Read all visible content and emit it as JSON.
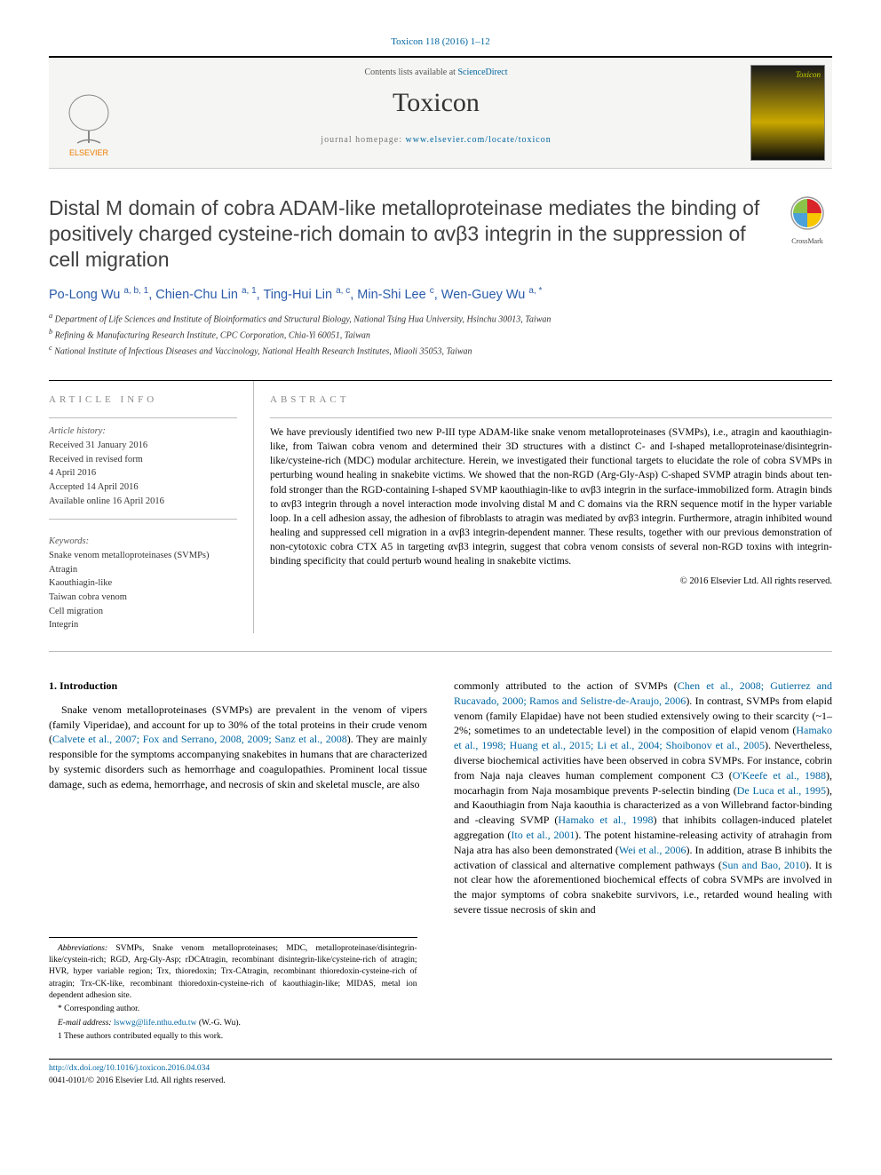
{
  "citation": "Toxicon 118 (2016) 1–12",
  "header": {
    "contents_prefix": "Contents lists available at ",
    "contents_link": "ScienceDirect",
    "journal": "Toxicon",
    "homepage_prefix": "journal homepage: ",
    "homepage_url": "www.elsevier.com/locate/toxicon",
    "cover_label": "Toxicon"
  },
  "crossmark": "CrossMark",
  "title": "Distal M domain of cobra ADAM-like metalloproteinase mediates the binding of positively charged cysteine-rich domain to αvβ3 integrin in the suppression of cell migration",
  "authors_html": "Po-Long Wu <sup>a, b, 1</sup>, Chien-Chu Lin <sup>a, 1</sup>, Ting-Hui Lin <sup>a, c</sup>, Min-Shi Lee <sup>c</sup>, Wen-Guey Wu <sup>a, *</sup>",
  "affiliations": [
    "a Department of Life Sciences and Institute of Bioinformatics and Structural Biology, National Tsing Hua University, Hsinchu 30013, Taiwan",
    "b Refining & Manufacturing Research Institute, CPC Corporation, Chia-Yi 60051, Taiwan",
    "c National Institute of Infectious Diseases and Vaccinology, National Health Research Institutes, Miaoli 35053, Taiwan"
  ],
  "article_info": {
    "heading": "ARTICLE INFO",
    "history_label": "Article history:",
    "history": [
      "Received 31 January 2016",
      "Received in revised form",
      "4 April 2016",
      "Accepted 14 April 2016",
      "Available online 16 April 2016"
    ],
    "keywords_label": "Keywords:",
    "keywords": [
      "Snake venom metalloproteinases (SVMPs)",
      "Atragin",
      "Kaouthiagin-like",
      "Taiwan cobra venom",
      "Cell migration",
      "Integrin"
    ]
  },
  "abstract": {
    "heading": "ABSTRACT",
    "text": "We have previously identified two new P-III type ADAM-like snake venom metalloproteinases (SVMPs), i.e., atragin and kaouthiagin-like, from Taiwan cobra venom and determined their 3D structures with a distinct C- and I-shaped metalloproteinase/disintegrin-like/cysteine-rich (MDC) modular architecture. Herein, we investigated their functional targets to elucidate the role of cobra SVMPs in perturbing wound healing in snakebite victims. We showed that the non-RGD (Arg-Gly-Asp) C-shaped SVMP atragin binds about ten-fold stronger than the RGD-containing I-shaped SVMP kaouthiagin-like to αvβ3 integrin in the surface-immobilized form. Atragin binds to αvβ3 integrin through a novel interaction mode involving distal M and C domains via the RRN sequence motif in the hyper variable loop. In a cell adhesion assay, the adhesion of fibroblasts to atragin was mediated by αvβ3 integrin. Furthermore, atragin inhibited wound healing and suppressed cell migration in a αvβ3 integrin-dependent manner. These results, together with our previous demonstration of non-cytotoxic cobra CTX A5 in targeting αvβ3 integrin, suggest that cobra venom consists of several non-RGD toxins with integrin-binding specificity that could perturb wound healing in snakebite victims.",
    "copyright": "© 2016 Elsevier Ltd. All rights reserved."
  },
  "intro": {
    "heading": "1. Introduction",
    "col1_pre": "Snake venom metalloproteinases (SVMPs) are prevalent in the venom of vipers (family Viperidae), and account for up to 30% of the total proteins in their crude venom (",
    "col1_link1": "Calvete et al., 2007; Fox and Serrano, 2008, 2009; Sanz et al., 2008",
    "col1_post": "). They are mainly responsible for the symptoms accompanying snakebites in humans that are characterized by systemic disorders such as hemorrhage and coagulopathies. Prominent local tissue damage, such as edema, hemorrhage, and necrosis of skin and skeletal muscle, are also",
    "col2_p1": "commonly attributed to the action of SVMPs (",
    "col2_l1": "Chen et al., 2008; Gutierrez and Rucavado, 2000; Ramos and Selistre-de-Araujo, 2006",
    "col2_p2": "). In contrast, SVMPs from elapid venom (family Elapidae) have not been studied extensively owing to their scarcity (~1–2%; sometimes to an undetectable level) in the composition of elapid venom (",
    "col2_l2": "Hamako et al., 1998; Huang et al., 2015; Li et al., 2004; Shoibonov et al., 2005",
    "col2_p3": "). Nevertheless, diverse biochemical activities have been observed in cobra SVMPs. For instance, cobrin from Naja naja cleaves human complement component C3 (",
    "col2_l3": "O'Keefe et al., 1988",
    "col2_p4": "), mocarhagin from Naja mosambique prevents P-selectin binding (",
    "col2_l4": "De Luca et al., 1995",
    "col2_p5": "), and Kaouthiagin from Naja kaouthia is characterized as a von Willebrand factor-binding and -cleaving SVMP (",
    "col2_l5": "Hamako et al., 1998",
    "col2_p6": ") that inhibits collagen-induced platelet aggregation (",
    "col2_l6": "Ito et al., 2001",
    "col2_p7": "). The potent histamine-releasing activity of atrahagin from Naja atra has also been demonstrated (",
    "col2_l7": "Wei et al., 2006",
    "col2_p8": "). In addition, atrase B inhibits the activation of classical and alternative complement pathways (",
    "col2_l8": "Sun and Bao, 2010",
    "col2_p9": "). It is not clear how the aforementioned biochemical effects of cobra SVMPs are involved in the major symptoms of cobra snakebite survivors, i.e., retarded wound healing with severe tissue necrosis of skin and"
  },
  "footnotes": {
    "abbrev_label": "Abbreviations:",
    "abbrev": " SVMPs, Snake venom metalloproteinases; MDC, metalloproteinase/disintegrin-like/cystein-rich; RGD, Arg-Gly-Asp; rDCAtragin, recombinant disintegrin-like/cysteine-rich of atragin; HVR, hyper variable region; Trx, thioredoxin; Trx-CAtragin, recombinant thioredoxin-cysteine-rich of atragin; Trx-CK-like, recombinant thioredoxin-cysteine-rich of kaouthiagin-like; MIDAS, metal ion dependent adhesion site.",
    "corr": "* Corresponding author.",
    "email_label": "E-mail address: ",
    "email": "lswwg@life.nthu.edu.tw",
    "email_suffix": " (W.-G. Wu).",
    "equal": "1 These authors contributed equally to this work."
  },
  "doi": {
    "url": "http://dx.doi.org/10.1016/j.toxicon.2016.04.034",
    "issn": "0041-0101/© 2016 Elsevier Ltd. All rights reserved."
  },
  "colors": {
    "link": "#0066a1",
    "author": "#2a5caa",
    "elsevier_orange": "#ef7d00"
  }
}
